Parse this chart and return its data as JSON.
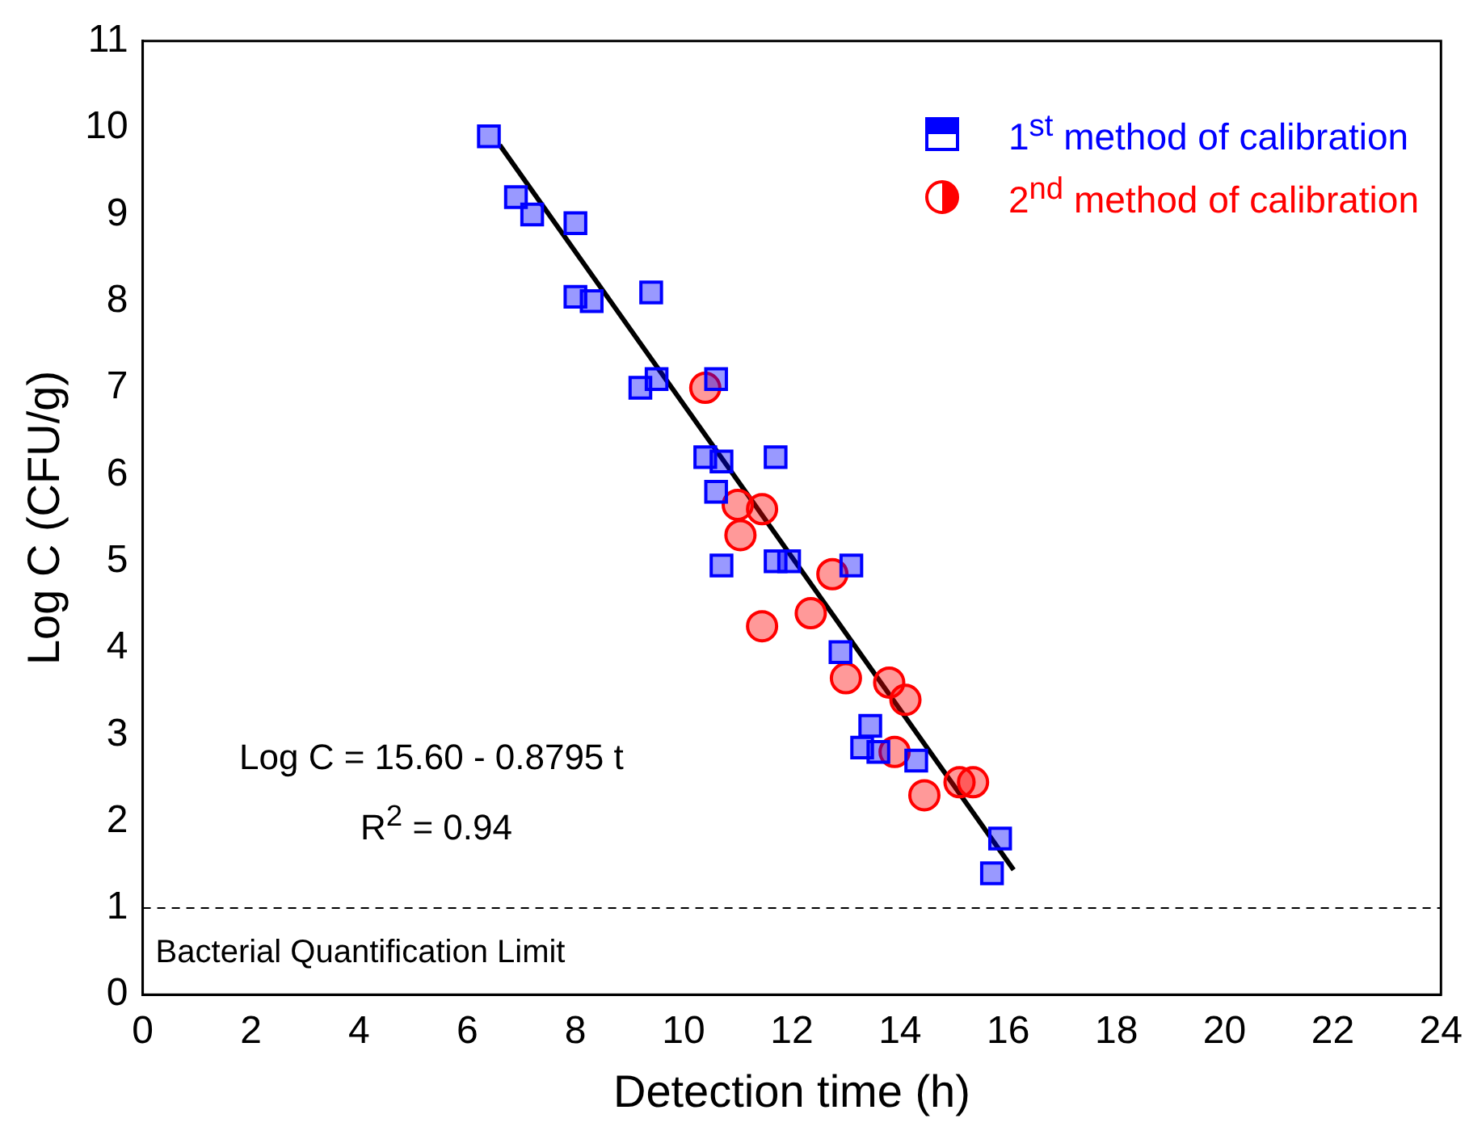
{
  "chart_data": {
    "type": "scatter",
    "xlabel": "Detection time (h)",
    "ylabel": "Log C (CFU/g)",
    "xlim": [
      0,
      24
    ],
    "xticks": [
      0,
      2,
      4,
      6,
      8,
      10,
      12,
      14,
      16,
      18,
      20,
      22,
      24
    ],
    "ylim": [
      0,
      11
    ],
    "yticks": [
      0,
      1,
      2,
      3,
      4,
      5,
      6,
      7,
      8,
      9,
      10,
      11
    ],
    "grid": false,
    "legend": "top right",
    "annotations": [
      "Log C = 15.60 - 0.8795 t",
      "R$^{2}$ = 0.94"
    ],
    "ref_lines": [
      {
        "axis": "y",
        "value": 1,
        "label": "Bacterial Quantification Limit",
        "color": "#000000",
        "line_style": "dashed"
      }
    ],
    "series": [
      {
        "name": "1$^{st}$ method of calibration",
        "color": "#0000ff",
        "marker": "square",
        "x": [
          6.4,
          6.9,
          7.2,
          8.0,
          8.0,
          8.3,
          9.4,
          9.2,
          9.5,
          10.6,
          10.4,
          10.7,
          11.7,
          10.6,
          10.7,
          11.7,
          11.95,
          13.1,
          12.9,
          13.45,
          13.3,
          13.6,
          14.3,
          15.85,
          15.7
        ],
        "values": [
          9.9,
          9.2,
          9.0,
          8.9,
          8.05,
          8.0,
          8.1,
          7.0,
          7.1,
          7.1,
          6.2,
          6.15,
          6.2,
          5.8,
          4.95,
          5.0,
          5.0,
          4.95,
          3.95,
          3.1,
          2.85,
          2.8,
          2.7,
          1.8,
          1.4
        ]
      },
      {
        "name": "2$^{nd}$ method of calibration",
        "color": "#ff0000",
        "marker": "circle",
        "x": [
          10.4,
          11.0,
          11.45,
          11.05,
          12.75,
          11.45,
          12.35,
          13.0,
          13.8,
          14.1,
          13.9,
          14.45,
          15.1,
          15.35
        ],
        "values": [
          7.0,
          5.65,
          5.6,
          5.3,
          4.85,
          4.25,
          4.4,
          3.65,
          3.6,
          3.4,
          2.8,
          2.3,
          2.45,
          2.45
        ]
      },
      {
        "type": "line",
        "color": "#000000",
        "marker": "none",
        "line_style": "solid",
        "x": [
          6.6,
          16.1
        ],
        "values": [
          9.8,
          1.44
        ]
      }
    ]
  }
}
